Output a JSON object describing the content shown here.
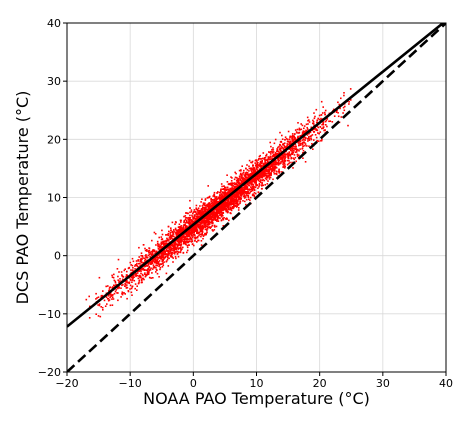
{
  "chart_data": {
    "type": "scatter",
    "title": "",
    "xlabel": "NOAA PAO Temperature (°C)",
    "ylabel": "DCS PAO Temperature (°C)",
    "xlim": [
      -20,
      40
    ],
    "ylim": [
      -20,
      40
    ],
    "xticks": [
      -20,
      -10,
      0,
      10,
      20,
      30,
      40
    ],
    "yticks": [
      -20,
      -10,
      0,
      10,
      20,
      30,
      40
    ],
    "xtick_labels": [
      "−20",
      "−10",
      "0",
      "10",
      "20",
      "30",
      "40"
    ],
    "ytick_labels": [
      "−20",
      "−10",
      "0",
      "10",
      "20",
      "30",
      "40"
    ],
    "grid": true,
    "scatter_color": "#ff0000",
    "scatter_cloud": {
      "x_range": [
        -17,
        25
      ],
      "center_line": {
        "slope": 0.87,
        "intercept": 5.0
      },
      "spread_std": 1.3
    },
    "series": [
      {
        "style": "solid",
        "color": "#000000",
        "x": [
          -20,
          40
        ],
        "y": [
          -12.2,
          40.4
        ]
      },
      {
        "style": "dashed",
        "color": "#000000",
        "x": [
          -20,
          40
        ],
        "y": [
          -20,
          40
        ]
      }
    ]
  }
}
